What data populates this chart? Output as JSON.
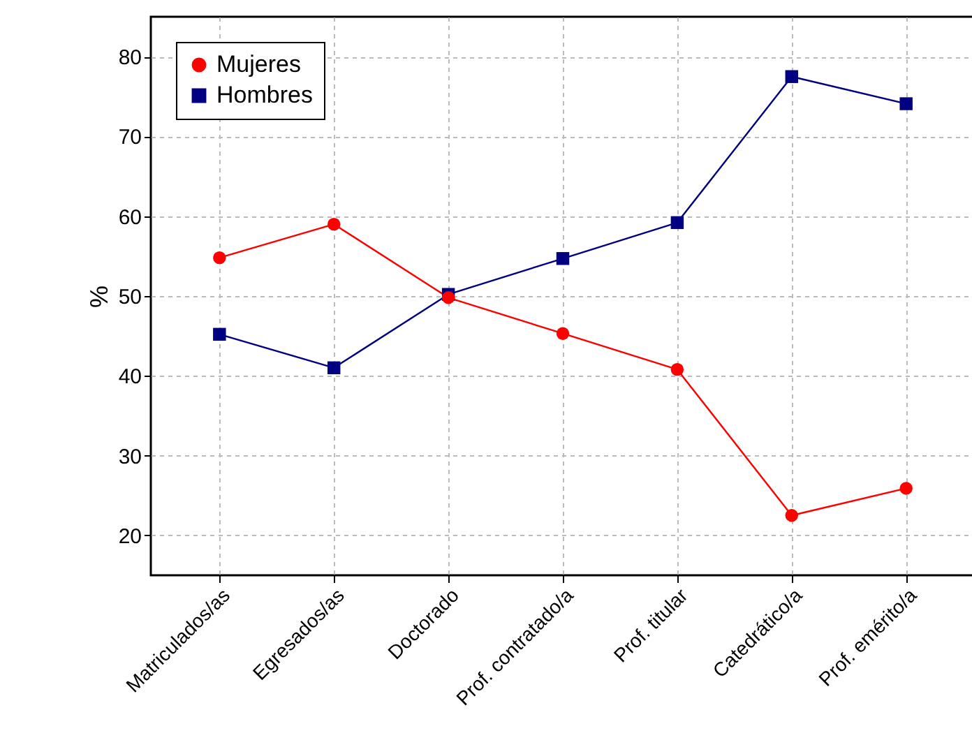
{
  "chart_data": {
    "type": "line",
    "ylabel": "%",
    "categories": [
      "Matriculados/as",
      "Egresados/as",
      "Doctorado",
      "Prof. contratado/a",
      "Prof. titular",
      "Catedrático/a",
      "Prof. emérito/a"
    ],
    "series": [
      {
        "name": "Mujeres",
        "color": "#ff0000",
        "marker": "circle",
        "values": [
          54.8,
          59.0,
          49.8,
          45.3,
          40.8,
          22.5,
          25.9
        ]
      },
      {
        "name": "Hombres",
        "color": "#000080",
        "marker": "square",
        "values": [
          45.2,
          41.0,
          50.2,
          54.7,
          59.2,
          77.5,
          74.1
        ]
      }
    ],
    "ylim": [
      15,
      85
    ],
    "yticks": [
      20,
      30,
      40,
      50,
      60,
      70,
      80
    ],
    "grid": true,
    "legend": "top left"
  }
}
